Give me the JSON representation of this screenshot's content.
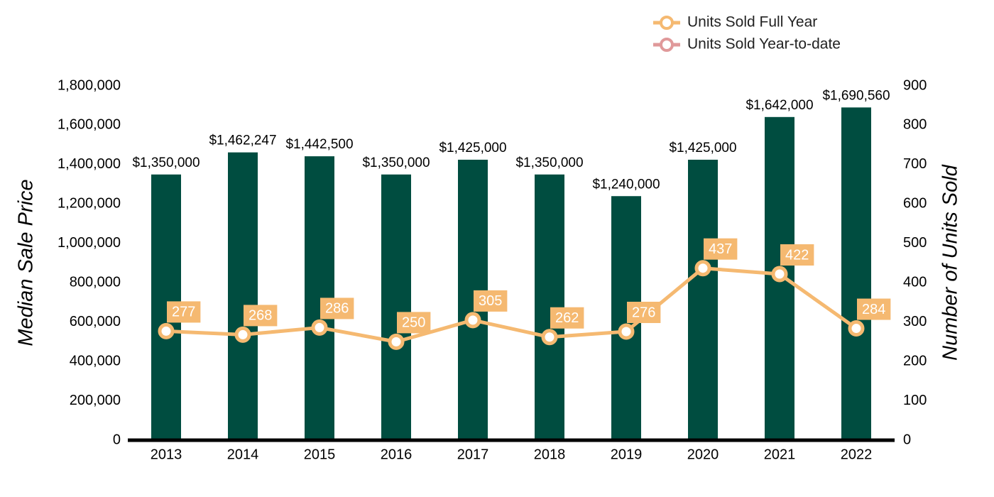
{
  "chart_data": {
    "type": "bar",
    "categories": [
      "2013",
      "2014",
      "2015",
      "2016",
      "2017",
      "2018",
      "2019",
      "2020",
      "2021",
      "2022"
    ],
    "values": [
      1350000,
      1462247,
      1442500,
      1350000,
      1425000,
      1350000,
      1240000,
      1425000,
      1642000,
      1690560
    ],
    "value_labels": [
      "$1,350,000",
      "$1,462,247",
      "$1,442,500",
      "$1,350,000",
      "$1,425,000",
      "$1,350,000",
      "$1,240,000",
      "$1,425,000",
      "$1,642,000",
      "$1,690,560"
    ],
    "color": "#004d40",
    "ylabel": "Median Sale Price",
    "y2label": "Number of Units Sold",
    "ylim": [
      0,
      1800000
    ],
    "yticks": [
      0,
      {
        "value": 200000,
        "label": "200,000"
      },
      {
        "value": 400000,
        "label": "400,000"
      },
      {
        "value": 600000,
        "label": "600,000"
      },
      {
        "value": 800000,
        "label": "800,000"
      },
      {
        "value": 1000000,
        "label": "1,000,000"
      },
      {
        "value": 1200000,
        "label": "1,200,000"
      },
      {
        "value": 1400000,
        "label": "1,400,000"
      },
      {
        "value": 1600000,
        "label": "1,600,000"
      },
      {
        "value": 1800000,
        "label": "1,800,000"
      }
    ],
    "y2lim": [
      0,
      900
    ],
    "y2ticks": [
      0,
      100,
      200,
      300,
      400,
      500,
      600,
      700,
      800,
      900
    ],
    "legend": "top-right",
    "series": [
      {
        "name": "Units Sold Full Year",
        "type": "line",
        "axis": "y2",
        "color": "#f5b971",
        "values": [
          277,
          268,
          286,
          250,
          305,
          262,
          276,
          437,
          422,
          284
        ]
      },
      {
        "name": "Units Sold Year-to-date",
        "type": "line",
        "axis": "y2",
        "color": "#e0999a",
        "values": [
          null,
          null,
          null,
          null,
          null,
          null,
          null,
          null,
          null,
          null
        ]
      }
    ]
  }
}
